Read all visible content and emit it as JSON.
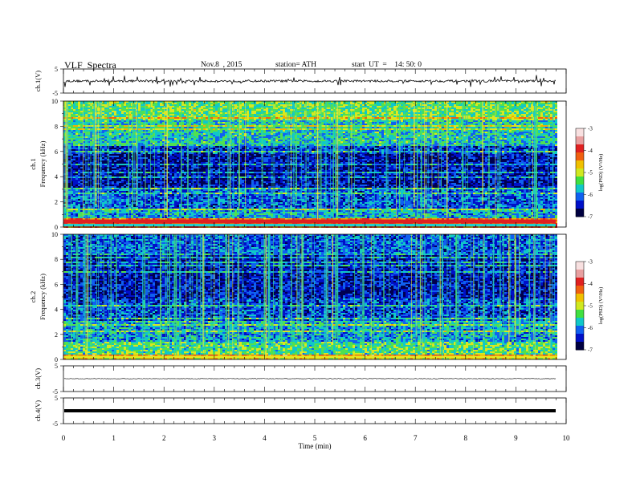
{
  "header": {
    "title": "VLF  Spectra",
    "date": "Nov.8  , 2015",
    "station": "station= ATH",
    "start_ut": "start  UT  =    14: 50: 0"
  },
  "colorbar": {
    "label": "log(PSD) (V²/Hz)",
    "ticks": [
      "-3",
      "-4",
      "-5",
      "-6",
      "-7"
    ],
    "colors": [
      "#e8c8c8",
      "#e83030",
      "#f07020",
      "#f0c020",
      "#e8e820",
      "#60e060",
      "#20c0c0",
      "#2060f0",
      "#0000c0",
      "#000060"
    ]
  },
  "chart_data": [
    {
      "type": "line",
      "name": "ch1-waveform",
      "ylabel": "ch.1(V)",
      "ylim": [
        -5,
        5
      ],
      "yticks": [
        "5",
        "-5"
      ],
      "xlim": [
        0,
        10
      ],
      "description_level": "noise around 0 V with spikes up to ~2.5 V",
      "baseline": 0,
      "spike_max": 2.5
    },
    {
      "type": "heatmap",
      "name": "ch1-spectrogram",
      "ylabel": "Frequency  (kHz)",
      "panel_label": "ch.1",
      "ylim": [
        0,
        10
      ],
      "yticks": [
        "10",
        "8",
        "6",
        "4",
        "2",
        "0"
      ],
      "xlim": [
        0,
        9.8
      ],
      "band_levels": [
        {
          "f_lo": 8.5,
          "f_hi": 10,
          "level": -5.2
        },
        {
          "f_lo": 6.5,
          "f_hi": 8.5,
          "level": -5.6
        },
        {
          "f_lo": 5.8,
          "f_hi": 6.5,
          "level": -6.4
        },
        {
          "f_lo": 3.2,
          "f_hi": 5.8,
          "level": -6.7
        },
        {
          "f_lo": 1.5,
          "f_hi": 3.2,
          "level": -6.2
        },
        {
          "f_lo": 0.8,
          "f_hi": 1.5,
          "level": -5.8
        },
        {
          "f_lo": 0.0,
          "f_hi": 0.8,
          "level": -4.0
        }
      ]
    },
    {
      "type": "heatmap",
      "name": "ch2-spectrogram",
      "ylabel": "Frequency  (kHz)",
      "panel_label": "ch.2",
      "ylim": [
        0,
        10
      ],
      "yticks": [
        "10",
        "8",
        "6",
        "4",
        "2",
        "0"
      ],
      "xlim": [
        0,
        9.8
      ],
      "band_levels": [
        {
          "f_lo": 8.5,
          "f_hi": 10,
          "level": -6.2
        },
        {
          "f_lo": 5.0,
          "f_hi": 8.5,
          "level": -6.6
        },
        {
          "f_lo": 3.0,
          "f_hi": 5.0,
          "level": -6.3
        },
        {
          "f_lo": 1.5,
          "f_hi": 3.0,
          "level": -5.9
        },
        {
          "f_lo": 0.5,
          "f_hi": 1.5,
          "level": -5.3
        },
        {
          "f_lo": 0.0,
          "f_hi": 0.5,
          "level": -4.6
        }
      ]
    },
    {
      "type": "line",
      "name": "ch3-waveform",
      "ylabel": "ch.3(V)",
      "ylim": [
        -5,
        5
      ],
      "yticks": [
        "5",
        "-5"
      ],
      "xlim": [
        0,
        10
      ],
      "baseline": 0
    },
    {
      "type": "line",
      "name": "ch4-waveform",
      "ylabel": "ch.4(V)",
      "ylim": [
        -5,
        5
      ],
      "yticks": [
        "5",
        "-5"
      ],
      "xlim": [
        0,
        10
      ],
      "baseline": 0
    }
  ],
  "x_axis": {
    "label": "Time  (min)",
    "ticks": [
      "0",
      "1",
      "2",
      "3",
      "4",
      "5",
      "6",
      "7",
      "8",
      "9",
      "10"
    ]
  }
}
